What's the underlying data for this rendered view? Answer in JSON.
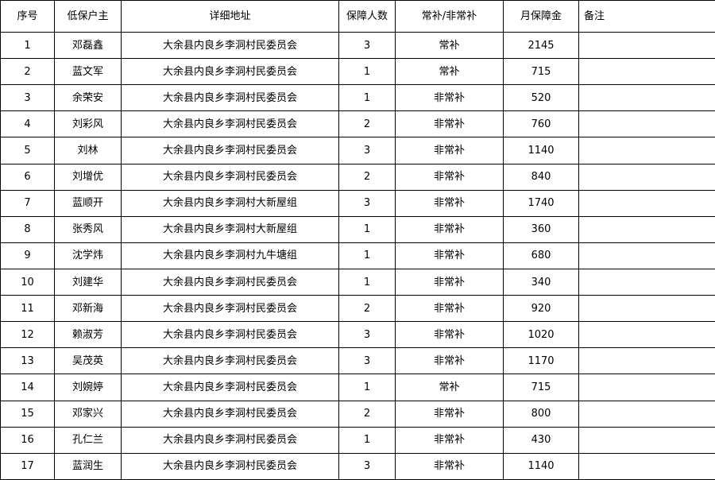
{
  "colors": {
    "background": "#ffffff",
    "border": "#000000",
    "text": "#000000"
  },
  "table": {
    "headers": {
      "index": "序号",
      "name": "低保户主",
      "address": "详细地址",
      "people": "保障人数",
      "type": "常补/非常补",
      "amount": "月保障金",
      "remark": "备注"
    },
    "rows": [
      {
        "index": "1",
        "name": "邓磊鑫",
        "address": "大余县内良乡李洞村民委员会",
        "people": "3",
        "type": "常补",
        "amount": "2145",
        "remark": ""
      },
      {
        "index": "2",
        "name": "蓝文军",
        "address": "大余县内良乡李洞村民委员会",
        "people": "1",
        "type": "常补",
        "amount": "715",
        "remark": ""
      },
      {
        "index": "3",
        "name": "余荣安",
        "address": "大余县内良乡李洞村民委员会",
        "people": "1",
        "type": "非常补",
        "amount": "520",
        "remark": ""
      },
      {
        "index": "4",
        "name": "刘彩风",
        "address": "大余县内良乡李洞村民委员会",
        "people": "2",
        "type": "非常补",
        "amount": "760",
        "remark": ""
      },
      {
        "index": "5",
        "name": "刘林",
        "address": "大余县内良乡李洞村民委员会",
        "people": "3",
        "type": "非常补",
        "amount": "1140",
        "remark": ""
      },
      {
        "index": "6",
        "name": "刘增优",
        "address": "大余县内良乡李洞村民委员会",
        "people": "2",
        "type": "非常补",
        "amount": "840",
        "remark": ""
      },
      {
        "index": "7",
        "name": "蓝顺开",
        "address": "大余县内良乡李洞村大新屋组",
        "people": "3",
        "type": "非常补",
        "amount": "1740",
        "remark": ""
      },
      {
        "index": "8",
        "name": "张秀风",
        "address": "大余县内良乡李洞村大新屋组",
        "people": "1",
        "type": "非常补",
        "amount": "360",
        "remark": ""
      },
      {
        "index": "9",
        "name": "沈学炜",
        "address": "大余县内良乡李洞村九牛塘组",
        "people": "1",
        "type": "非常补",
        "amount": "680",
        "remark": ""
      },
      {
        "index": "10",
        "name": "刘建华",
        "address": "大余县内良乡李洞村民委员会",
        "people": "1",
        "type": "非常补",
        "amount": "340",
        "remark": ""
      },
      {
        "index": "11",
        "name": "邓新海",
        "address": "大余县内良乡李洞村民委员会",
        "people": "2",
        "type": "非常补",
        "amount": "920",
        "remark": ""
      },
      {
        "index": "12",
        "name": "赖淑芳",
        "address": "大余县内良乡李洞村民委员会",
        "people": "3",
        "type": "非常补",
        "amount": "1020",
        "remark": ""
      },
      {
        "index": "13",
        "name": "吴茂英",
        "address": "大余县内良乡李洞村民委员会",
        "people": "3",
        "type": "非常补",
        "amount": "1170",
        "remark": ""
      },
      {
        "index": "14",
        "name": "刘婉婷",
        "address": "大余县内良乡李洞村民委员会",
        "people": "1",
        "type": "常补",
        "amount": "715",
        "remark": ""
      },
      {
        "index": "15",
        "name": "邓家兴",
        "address": "大余县内良乡李洞村民委员会",
        "people": "2",
        "type": "非常补",
        "amount": "800",
        "remark": ""
      },
      {
        "index": "16",
        "name": "孔仁兰",
        "address": "大余县内良乡李洞村民委员会",
        "people": "1",
        "type": "非常补",
        "amount": "430",
        "remark": ""
      },
      {
        "index": "17",
        "name": "蓝润生",
        "address": "大余县内良乡李洞村民委员会",
        "people": "3",
        "type": "非常补",
        "amount": "1140",
        "remark": ""
      }
    ]
  }
}
